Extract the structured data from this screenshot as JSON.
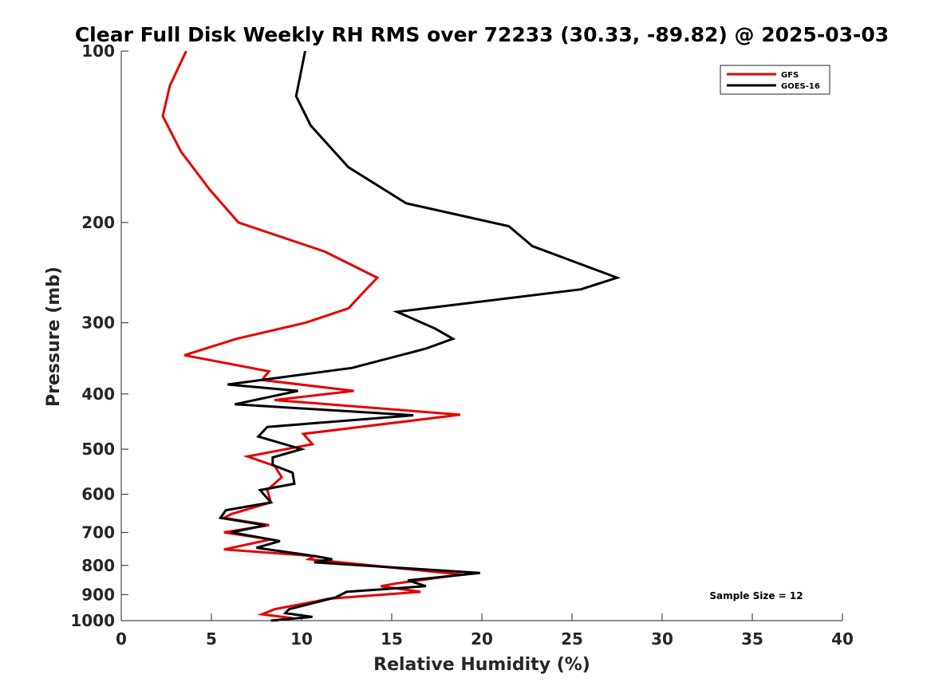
{
  "chart_data": {
    "type": "line",
    "title": "Clear Full Disk Weekly RH RMS over 72233 (30.33, -89.82) @ 2025-03-03",
    "xlabel": "Relative Humidity (%)",
    "ylabel": "Pressure (mb)",
    "xlim": [
      0,
      40
    ],
    "ylim": [
      1000,
      100
    ],
    "y_scale": "log",
    "y_reversed": true,
    "x_ticks": [
      0,
      5,
      10,
      15,
      20,
      25,
      30,
      35,
      40
    ],
    "y_ticks": [
      100,
      200,
      300,
      400,
      500,
      600,
      700,
      800,
      900,
      1000
    ],
    "grid": false,
    "legend_position": "top-right",
    "annotation": "Sample Size = 12",
    "series": [
      {
        "name": "GFS",
        "color": "#e60000",
        "points": [
          [
            3.6,
            100
          ],
          [
            2.7,
            115
          ],
          [
            2.3,
            130
          ],
          [
            3.3,
            150
          ],
          [
            4.9,
            175
          ],
          [
            6.5,
            200
          ],
          [
            11.3,
            225
          ],
          [
            14.2,
            250
          ],
          [
            13.2,
            270
          ],
          [
            12.6,
            283
          ],
          [
            10.2,
            300
          ],
          [
            6.4,
            320
          ],
          [
            3.5,
            342
          ],
          [
            8.2,
            365
          ],
          [
            7.8,
            378
          ],
          [
            12.9,
            395
          ],
          [
            8.5,
            410
          ],
          [
            18.8,
            435
          ],
          [
            10.1,
            470
          ],
          [
            10.6,
            490
          ],
          [
            7.0,
            515
          ],
          [
            8.5,
            535
          ],
          [
            8.9,
            560
          ],
          [
            8.1,
            590
          ],
          [
            8.3,
            620
          ],
          [
            6.1,
            650
          ],
          [
            5.7,
            660
          ],
          [
            8.2,
            680
          ],
          [
            5.7,
            700
          ],
          [
            8.3,
            720
          ],
          [
            5.7,
            750
          ],
          [
            10.7,
            770
          ],
          [
            10.4,
            780
          ],
          [
            18.9,
            830
          ],
          [
            15.3,
            860
          ],
          [
            14.4,
            870
          ],
          [
            16.6,
            890
          ],
          [
            11.5,
            915
          ],
          [
            10.8,
            925
          ],
          [
            8.5,
            955
          ],
          [
            7.8,
            975
          ],
          [
            9.5,
            990
          ],
          [
            8.5,
            1000
          ]
        ]
      },
      {
        "name": "GOES-16",
        "color": "#000000",
        "points": [
          [
            10.2,
            100
          ],
          [
            9.7,
            120
          ],
          [
            10.5,
            135
          ],
          [
            12.6,
            160
          ],
          [
            15.8,
            185
          ],
          [
            21.5,
            203
          ],
          [
            22.8,
            220
          ],
          [
            27.5,
            250
          ],
          [
            25.5,
            262
          ],
          [
            15.3,
            287
          ],
          [
            17.4,
            307
          ],
          [
            18.4,
            320
          ],
          [
            16.9,
            333
          ],
          [
            12.8,
            360
          ],
          [
            5.9,
            385
          ],
          [
            9.8,
            395
          ],
          [
            6.3,
            417
          ],
          [
            16.2,
            436
          ],
          [
            8.1,
            457
          ],
          [
            7.6,
            475
          ],
          [
            10.0,
            500
          ],
          [
            8.4,
            517
          ],
          [
            8.4,
            533
          ],
          [
            9.5,
            550
          ],
          [
            9.6,
            575
          ],
          [
            7.7,
            590
          ],
          [
            8.3,
            620
          ],
          [
            5.8,
            640
          ],
          [
            5.5,
            660
          ],
          [
            8.0,
            680
          ],
          [
            6.1,
            700
          ],
          [
            8.8,
            725
          ],
          [
            7.5,
            745
          ],
          [
            10.7,
            770
          ],
          [
            11.7,
            780
          ],
          [
            10.7,
            790
          ],
          [
            19.9,
            825
          ],
          [
            15.9,
            850
          ],
          [
            16.9,
            870
          ],
          [
            12.5,
            890
          ],
          [
            11.9,
            910
          ],
          [
            9.3,
            955
          ],
          [
            9.1,
            970
          ],
          [
            10.6,
            985
          ],
          [
            8.3,
            1000
          ]
        ]
      }
    ]
  }
}
